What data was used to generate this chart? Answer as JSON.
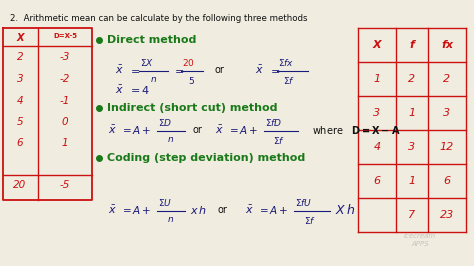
{
  "title": "2.  Arithmetic mean can be calculate by the following three methods",
  "bg_color": "#f0ece0",
  "green_color": "#1a7a1a",
  "red_color": "#cc1111",
  "black_color": "#111111",
  "dark_blue": "#1a1a7a",
  "bullet1": "Direct method",
  "bullet2": "Indirect (short cut) method",
  "bullet3": "Coding (step deviation) method",
  "where_text": "where   D = X- A",
  "table_headers": [
    "X",
    "f",
    "fx"
  ],
  "table_data": [
    [
      "1",
      "2",
      "2"
    ],
    [
      "3",
      "1",
      "3"
    ],
    [
      "4",
      "3",
      "12"
    ],
    [
      "6",
      "1",
      "6"
    ],
    [
      "",
      "7",
      "23"
    ]
  ],
  "left_table_x": [
    "2",
    "3",
    "4",
    "5",
    "6",
    "20"
  ],
  "left_table_d": [
    "-3",
    "-2",
    "-1",
    "0",
    "1",
    "-5"
  ],
  "left_header_x": "X",
  "left_header_d": "D=X-5"
}
